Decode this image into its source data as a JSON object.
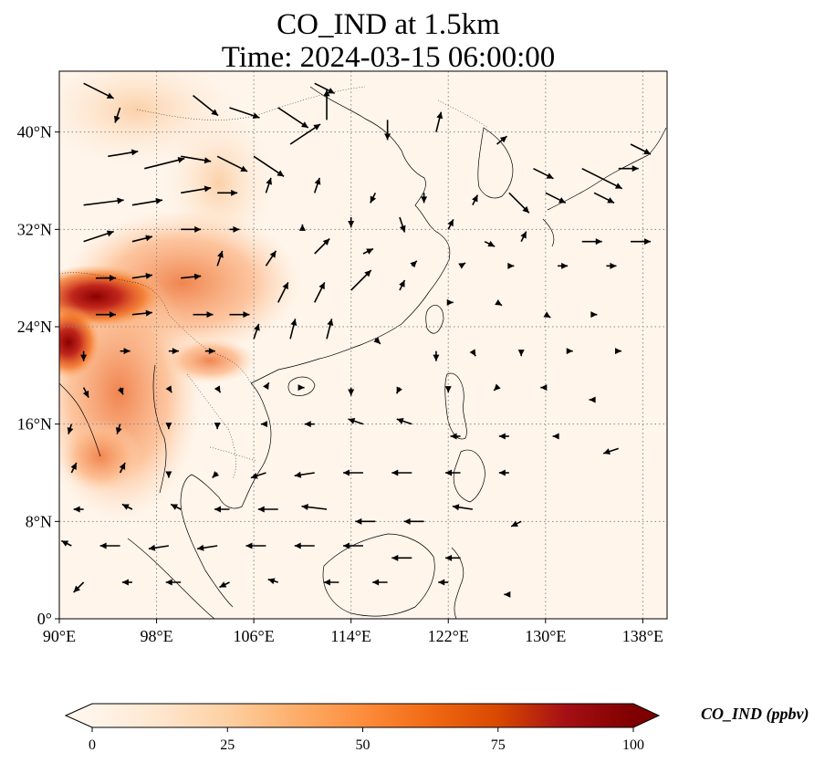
{
  "title": {
    "line1": "CO_IND at 1.5km",
    "line2": "Time: 2024-03-15 06:00:00"
  },
  "map": {
    "projection": "PlateCarree",
    "lon_range": [
      90,
      140
    ],
    "lat_range": [
      0,
      45
    ],
    "lon_ticks": [
      {
        "value": 90,
        "label": "90°E"
      },
      {
        "value": 98,
        "label": "98°E"
      },
      {
        "value": 106,
        "label": "106°E"
      },
      {
        "value": 114,
        "label": "114°E"
      },
      {
        "value": 122,
        "label": "122°E"
      },
      {
        "value": 130,
        "label": "130°E"
      },
      {
        "value": 138,
        "label": "138°E"
      }
    ],
    "lat_ticks": [
      {
        "value": 0,
        "label": "0°"
      },
      {
        "value": 8,
        "label": "8°N"
      },
      {
        "value": 16,
        "label": "16°N"
      },
      {
        "value": 24,
        "label": "24°N"
      },
      {
        "value": 32,
        "label": "32°N"
      },
      {
        "value": 40,
        "label": "40°N"
      }
    ],
    "gridlines": "dotted",
    "field_colors": {
      "low": "#fff5eb",
      "mid": "#fdae6b",
      "high": "#7f0000"
    }
  },
  "colorbar": {
    "label": "CO_IND (ppbv)",
    "min": 0,
    "max": 100,
    "extend": "both",
    "ticks": [
      {
        "value": 0,
        "label": "0"
      },
      {
        "value": 25,
        "label": "25"
      },
      {
        "value": 50,
        "label": "50"
      },
      {
        "value": 75,
        "label": "75"
      },
      {
        "value": 100,
        "label": "100"
      }
    ],
    "stops": [
      "#fff5eb",
      "#fee6ce",
      "#fdd0a2",
      "#fdae6b",
      "#fd8d3c",
      "#f16913",
      "#d94801",
      "#a50f15",
      "#7f0000"
    ]
  },
  "wind_field": {
    "units": "vector",
    "vectors": [
      [
        92,
        44,
        3,
        -1.5
      ],
      [
        95,
        42,
        -0.5,
        -1.5
      ],
      [
        101,
        43,
        2.5,
        -2
      ],
      [
        104,
        42,
        3,
        -1
      ],
      [
        108,
        42,
        3,
        -2
      ],
      [
        111,
        44,
        2,
        -1
      ],
      [
        94,
        38,
        3,
        0.5
      ],
      [
        97,
        37,
        4,
        1
      ],
      [
        100,
        38,
        3,
        -0.5
      ],
      [
        103,
        38,
        3,
        -1.5
      ],
      [
        106,
        38,
        3,
        -2
      ],
      [
        109,
        39,
        3,
        2
      ],
      [
        112,
        41,
        0,
        3
      ],
      [
        117,
        41,
        0,
        -2
      ],
      [
        121,
        40,
        0.5,
        2
      ],
      [
        126,
        39,
        1,
        0.8
      ],
      [
        129,
        37,
        2,
        -1
      ],
      [
        133,
        37,
        4,
        -2
      ],
      [
        136,
        37,
        2,
        0
      ],
      [
        137,
        39,
        2,
        -1
      ],
      [
        92,
        34,
        4,
        0.5
      ],
      [
        96,
        34,
        3,
        0.5
      ],
      [
        100,
        35,
        3,
        0.5
      ],
      [
        103,
        35,
        2,
        0
      ],
      [
        107,
        35,
        0.5,
        1.5
      ],
      [
        111,
        35,
        0.5,
        1.5
      ],
      [
        116,
        35,
        -0.5,
        -1
      ],
      [
        120,
        35,
        0,
        -1
      ],
      [
        124,
        34,
        0.5,
        1
      ],
      [
        127,
        35,
        2,
        -2
      ],
      [
        130,
        35,
        2,
        -1
      ],
      [
        134,
        35,
        2,
        -1
      ],
      [
        92,
        31,
        3,
        1
      ],
      [
        96,
        31,
        2,
        0.5
      ],
      [
        100,
        32,
        2,
        0
      ],
      [
        104,
        32,
        1,
        0
      ],
      [
        110,
        32,
        0,
        0.5
      ],
      [
        114,
        33,
        0,
        -1
      ],
      [
        118,
        33,
        0.5,
        -1.5
      ],
      [
        122,
        32,
        0.5,
        1
      ],
      [
        125,
        31,
        1,
        -0.5
      ],
      [
        128,
        31,
        0.5,
        1
      ],
      [
        133,
        31,
        2,
        0
      ],
      [
        137,
        31,
        2,
        0
      ],
      [
        93,
        28,
        2,
        0
      ],
      [
        96,
        28,
        2,
        0.3
      ],
      [
        100,
        28,
        2,
        0.2
      ],
      [
        103,
        29,
        0.5,
        1.5
      ],
      [
        107,
        29,
        1,
        1.5
      ],
      [
        111,
        30,
        1.5,
        1.5
      ],
      [
        115,
        30,
        1,
        0.5
      ],
      [
        119,
        29,
        0.5,
        0.5
      ],
      [
        123,
        29,
        0.5,
        0.3
      ],
      [
        127,
        29,
        0.5,
        0
      ],
      [
        131,
        29,
        1,
        0
      ],
      [
        135,
        29,
        1,
        0
      ],
      [
        93,
        25,
        2,
        0
      ],
      [
        96,
        25,
        2,
        0.2
      ],
      [
        101,
        25,
        2,
        0
      ],
      [
        104,
        25,
        2,
        0
      ],
      [
        108,
        26,
        1,
        2
      ],
      [
        111,
        26,
        1,
        2
      ],
      [
        114,
        27,
        2,
        2
      ],
      [
        118,
        27,
        0.5,
        1
      ],
      [
        122,
        26,
        0.5,
        0
      ],
      [
        126,
        26,
        0.5,
        -0.3
      ],
      [
        130,
        25,
        0.5,
        -0.3
      ],
      [
        134,
        25,
        0.3,
        0
      ],
      [
        92,
        22,
        0,
        -1
      ],
      [
        95,
        22,
        1,
        0
      ],
      [
        99,
        22,
        1,
        0
      ],
      [
        102,
        22,
        1,
        0
      ],
      [
        106,
        23,
        0.5,
        1.5
      ],
      [
        109,
        23,
        0.5,
        2
      ],
      [
        112,
        23,
        0.5,
        2
      ],
      [
        116,
        23,
        0.5,
        -0.5
      ],
      [
        121,
        22,
        0,
        -1
      ],
      [
        124,
        22,
        0.3,
        -0.5
      ],
      [
        128,
        22,
        0,
        -0.5
      ],
      [
        132,
        22,
        0.3,
        0
      ],
      [
        136,
        22,
        0.3,
        0
      ],
      [
        92,
        19,
        0.5,
        -1
      ],
      [
        95,
        19,
        0.3,
        -0.7
      ],
      [
        99,
        19,
        0.3,
        -0.5
      ],
      [
        103,
        19,
        0.3,
        -0.5
      ],
      [
        107,
        19,
        0.3,
        0.5
      ],
      [
        110,
        19,
        0.2,
        0
      ],
      [
        114,
        19,
        0,
        -0.8
      ],
      [
        118,
        19,
        -0.3,
        -0.6
      ],
      [
        122,
        19,
        0,
        -0.5
      ],
      [
        126,
        19,
        -0.3,
        -0.3
      ],
      [
        130,
        19,
        -0.5,
        0
      ],
      [
        134,
        18,
        -0.5,
        0
      ],
      [
        91,
        16,
        -0.3,
        -1
      ],
      [
        95,
        16,
        -0.3,
        -1
      ],
      [
        99,
        16,
        0,
        -0.5
      ],
      [
        103,
        16,
        0,
        -0.5
      ],
      [
        107,
        16,
        -0.5,
        0
      ],
      [
        111,
        16,
        -1,
        0
      ],
      [
        115,
        16,
        -1.5,
        0.5
      ],
      [
        119,
        16,
        -1.5,
        0.5
      ],
      [
        123,
        15,
        -1,
        0
      ],
      [
        127,
        15,
        -1,
        0
      ],
      [
        131,
        15,
        -0.5,
        0
      ],
      [
        136,
        14,
        -1.5,
        -0.5
      ],
      [
        91,
        12,
        0.5,
        1
      ],
      [
        95,
        12,
        0.5,
        1
      ],
      [
        99,
        12,
        0,
        -0.5
      ],
      [
        103,
        12,
        -0.5,
        -0.5
      ],
      [
        107,
        12,
        -1.5,
        -0.5
      ],
      [
        111,
        12,
        -2,
        -0.3
      ],
      [
        115,
        12,
        -2,
        0
      ],
      [
        119,
        12,
        -2,
        0
      ],
      [
        123,
        12,
        -1.5,
        0
      ],
      [
        127,
        12,
        -1,
        0
      ],
      [
        92,
        9,
        -1,
        0
      ],
      [
        96,
        9,
        -1,
        0.5
      ],
      [
        100,
        9,
        -1,
        0.5
      ],
      [
        104,
        9,
        -1.5,
        0
      ],
      [
        108,
        9,
        -2,
        0
      ],
      [
        112,
        9,
        -2.5,
        0.3
      ],
      [
        116,
        8,
        -2,
        0
      ],
      [
        120,
        8,
        -2,
        0
      ],
      [
        124,
        9,
        -2,
        0.3
      ],
      [
        128,
        8,
        -1,
        -0.5
      ],
      [
        91,
        6,
        -1,
        0.5
      ],
      [
        95,
        6,
        -2,
        0
      ],
      [
        99,
        6,
        -2,
        -0.3
      ],
      [
        103,
        6,
        -2,
        -0.3
      ],
      [
        107,
        6,
        -2,
        0
      ],
      [
        111,
        6,
        -2,
        0
      ],
      [
        115,
        6,
        -2,
        0
      ],
      [
        119,
        5,
        -2,
        0
      ],
      [
        123,
        5,
        -1.5,
        0
      ],
      [
        92,
        3,
        -1,
        -1
      ],
      [
        96,
        3,
        -1,
        0
      ],
      [
        100,
        3,
        -1.5,
        0
      ],
      [
        104,
        3,
        -1,
        -0.5
      ],
      [
        108,
        3,
        -1,
        0.3
      ],
      [
        113,
        3,
        -1.5,
        0
      ],
      [
        117,
        3,
        -1.5,
        0
      ],
      [
        122,
        3,
        -1,
        0
      ],
      [
        127,
        2,
        -0.5,
        0
      ]
    ]
  }
}
